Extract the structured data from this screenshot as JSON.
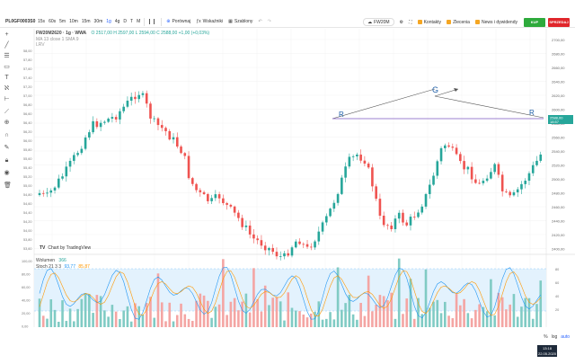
{
  "toolbar": {
    "symbol": "PL0GF0003S0",
    "intervals": [
      "15s",
      "60s",
      "5m",
      "10m",
      "15m",
      "30m",
      "1g",
      "4g",
      "D",
      "T",
      "M"
    ],
    "active_interval": "1g",
    "compare": "Porównaj",
    "indicators": "Wskaźniki",
    "template": "Szablony",
    "instrument": "FW20M",
    "kontakty": "Kontakty",
    "zlecenia": "Zlecenia",
    "news": "News i dywidendy",
    "buy": "KUP",
    "sell": "SPRZEDAJ"
  },
  "legend": {
    "title": "FW20M2620 · 1g · WWA",
    "ohlc": "O 2517,00  H 2597,00  L 2594,00  C 2588,00  +1,00 (+0,03%)",
    "ma_line": "MA 13 close 1 SMA 9",
    "extra": "LRV"
  },
  "price_axis": {
    "labels": [
      "2700,00",
      "2680,00",
      "2660,00",
      "2640,00",
      "2620,00",
      "2600,00",
      "2580,00",
      "2560,00",
      "2540,00",
      "2520,00",
      "2500,00",
      "2480,00",
      "2460,00",
      "2440,00",
      "2420,00",
      "2400,00"
    ],
    "current_price": "2588,00",
    "current_sub": "18:57"
  },
  "left_axis": {
    "labels": [
      "58,00",
      "57,80",
      "57,60",
      "57,40",
      "57,20",
      "57,00",
      "56,80",
      "56,60",
      "56,40",
      "56,20",
      "56,00",
      "55,80",
      "55,60",
      "55,40",
      "55,20",
      "55,00",
      "54,80",
      "54,60",
      "54,40",
      "54,20",
      "54,00",
      "53,80",
      "53,60",
      "53,40",
      "53,20"
    ]
  },
  "annotations": {
    "r1": "R",
    "g": "G",
    "r2": "R"
  },
  "tradingview": "Chart by TradingView",
  "volume_legend": {
    "label": "Wolumen",
    "value": "366"
  },
  "stoch_legend": {
    "label": "Stoch 21 3 3",
    "k": "93,77",
    "d": "85,87"
  },
  "osc_axis": {
    "labels": [
      "100,00",
      "80,00",
      "60,00",
      "40,00",
      "20,00",
      "0,00"
    ],
    "right_labels": [
      "80",
      "60",
      "40",
      "20"
    ]
  },
  "bottom": {
    "pct": "%",
    "log": "log",
    "auto": "auto"
  },
  "clock": {
    "time": "13:18",
    "date": "22.05.2020"
  }
}
